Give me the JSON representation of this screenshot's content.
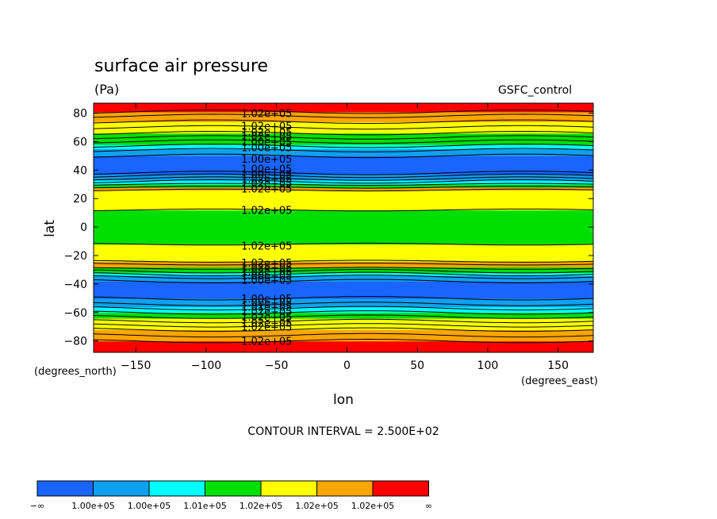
{
  "chart_data": {
    "type": "heatmap",
    "title": "surface air pressure",
    "units": "(Pa)",
    "dataset": "GSFC_control",
    "xlabel": "lon",
    "ylabel": "lat",
    "x_units": "(degrees_east)",
    "y_units": "(degrees_north)",
    "xlim": [
      -180,
      175
    ],
    "ylim": [
      -88,
      87
    ],
    "x_ticks": [
      -150,
      -100,
      -50,
      0,
      50,
      100,
      150
    ],
    "y_ticks": [
      -80,
      -60,
      -40,
      -20,
      0,
      20,
      40,
      60,
      80
    ],
    "contour_interval_text": "CONTOUR INTERVAL = 2.500E+02",
    "grid": false,
    "legend": "bottom",
    "color_scale": {
      "colors": [
        "#1a64ff",
        "#10a0f0",
        "#00ffff",
        "#00e000",
        "#ffff00",
        "#ffa500",
        "#ff0000"
      ],
      "labels": [
        "−∞",
        "1.00e+05",
        "1.00e+05",
        "1.01e+05",
        "1.02e+05",
        "1.02e+05",
        "1.02e+05",
        "∞"
      ]
    },
    "bands": [
      {
        "lat_from": -88,
        "lat_to": -80,
        "color_index": 6
      },
      {
        "lat_from": -80,
        "lat_to": -72,
        "color_index": 5
      },
      {
        "lat_from": -72,
        "lat_to": -64,
        "color_index": 4
      },
      {
        "lat_from": -64,
        "lat_to": -60,
        "color_index": 3
      },
      {
        "lat_from": -60,
        "lat_to": -56,
        "color_index": 2
      },
      {
        "lat_from": -56,
        "lat_to": -50,
        "color_index": 1
      },
      {
        "lat_from": -50,
        "lat_to": -38,
        "color_index": 0
      },
      {
        "lat_from": -38,
        "lat_to": -34,
        "color_index": 1
      },
      {
        "lat_from": -34,
        "lat_to": -32,
        "color_index": 2
      },
      {
        "lat_from": -32,
        "lat_to": -28,
        "color_index": 3
      },
      {
        "lat_from": -28,
        "lat_to": -24,
        "color_index": 5
      },
      {
        "lat_from": -24,
        "lat_to": -12,
        "color_index": 4
      },
      {
        "lat_from": -12,
        "lat_to": 12,
        "color_index": 3
      },
      {
        "lat_from": 12,
        "lat_to": 26,
        "color_index": 4
      },
      {
        "lat_from": 26,
        "lat_to": 28,
        "color_index": 5
      },
      {
        "lat_from": 28,
        "lat_to": 30,
        "color_index": 3
      },
      {
        "lat_from": 30,
        "lat_to": 33,
        "color_index": 2
      },
      {
        "lat_from": 33,
        "lat_to": 37,
        "color_index": 1
      },
      {
        "lat_from": 37,
        "lat_to": 50,
        "color_index": 0
      },
      {
        "lat_from": 50,
        "lat_to": 55,
        "color_index": 1
      },
      {
        "lat_from": 55,
        "lat_to": 58,
        "color_index": 2
      },
      {
        "lat_from": 58,
        "lat_to": 66,
        "color_index": 3
      },
      {
        "lat_from": 66,
        "lat_to": 74,
        "color_index": 4
      },
      {
        "lat_from": 74,
        "lat_to": 81,
        "color_index": 5
      },
      {
        "lat_from": 81,
        "lat_to": 87,
        "color_index": 6
      }
    ],
    "contour_lines_lat": [
      -80,
      -76,
      -72,
      -69,
      -66,
      -63,
      -60,
      -57,
      -54,
      -50,
      -38,
      -35,
      -33,
      -31,
      -29,
      -26,
      -24,
      -12,
      12,
      26,
      28,
      30,
      32,
      34,
      36,
      38,
      50,
      54,
      57,
      60,
      63,
      66,
      70,
      74,
      78,
      81
    ],
    "contour_labels": [
      {
        "lat": 80,
        "text": "1.02e+05"
      },
      {
        "lat": 71,
        "text": "1.02e+05"
      },
      {
        "lat": 67,
        "text": "1.02e+05"
      },
      {
        "lat": 64,
        "text": "1.02e+05"
      },
      {
        "lat": 60,
        "text": "1.00e+05"
      },
      {
        "lat": 56,
        "text": "1.00e+05"
      },
      {
        "lat": 48,
        "text": "1.00e+05"
      },
      {
        "lat": 41,
        "text": "1.00e+05"
      },
      {
        "lat": 37,
        "text": "1.00e+05"
      },
      {
        "lat": 34,
        "text": "1.02e+05"
      },
      {
        "lat": 31,
        "text": "1.02e+05"
      },
      {
        "lat": 27,
        "text": "1.02e+05"
      },
      {
        "lat": 12,
        "text": "1.02e+05"
      },
      {
        "lat": -13,
        "text": "1.02e+05"
      },
      {
        "lat": -25,
        "text": "1.02e+05"
      },
      {
        "lat": -28,
        "text": "1.02e+05"
      },
      {
        "lat": -31,
        "text": "1.02e+05"
      },
      {
        "lat": -34,
        "text": "1.00e+05"
      },
      {
        "lat": -37,
        "text": "1.00e+05"
      },
      {
        "lat": -50,
        "text": "1.00e+05"
      },
      {
        "lat": -53,
        "text": "1.00e+05"
      },
      {
        "lat": -56,
        "text": "1.01e+05"
      },
      {
        "lat": -59,
        "text": "1.02e+05"
      },
      {
        "lat": -63,
        "text": "1.02e+05"
      },
      {
        "lat": -67,
        "text": "1.02e+05"
      },
      {
        "lat": -70,
        "text": "1.02e+05"
      },
      {
        "lat": -80,
        "text": "1.02e+05"
      }
    ]
  }
}
